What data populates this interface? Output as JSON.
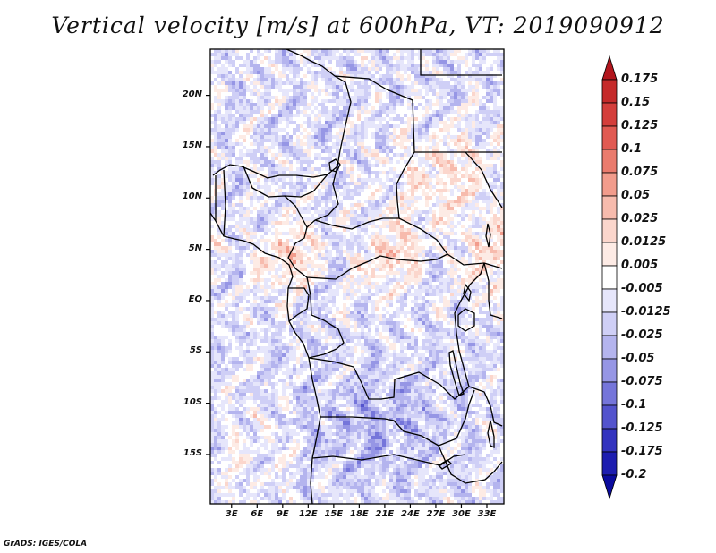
{
  "title": "Vertical velocity [m/s] at 600hPa, VT: 2019090912",
  "footer": "GrADS: IGES/COLA",
  "chart_data": {
    "type": "heatmap",
    "title": "Vertical velocity [m/s] at 600hPa, VT: 2019090912",
    "variable": "Vertical velocity",
    "units": "m/s",
    "level": "600hPa",
    "valid_time": "2019090912",
    "lat_ticks": [
      "20N",
      "15N",
      "10N",
      "5N",
      "EQ",
      "5S",
      "10S",
      "15S"
    ],
    "lon_ticks": [
      "3E",
      "6E",
      "9E",
      "12E",
      "15E",
      "18E",
      "21E",
      "24E",
      "27E",
      "30E",
      "33E"
    ],
    "lon_range": [
      0.5,
      35
    ],
    "lat_range": [
      -19.8,
      24.5
    ],
    "colorbar": {
      "levels": [
        "0.175",
        "0.15",
        "0.125",
        "0.1",
        "0.075",
        "0.05",
        "0.025",
        "0.0125",
        "0.005",
        "-0.005",
        "-0.0125",
        "-0.025",
        "-0.05",
        "-0.075",
        "-0.1",
        "-0.125",
        "-0.175",
        "-0.2"
      ],
      "colors": [
        "#b2161d",
        "#c52a2a",
        "#d43e3b",
        "#e15a52",
        "#ea7b6d",
        "#f29c8c",
        "#f7bbad",
        "#fbd6cc",
        "#fdebe5",
        "#ffffff",
        "#e6e6fb",
        "#cfcff6",
        "#b4b4ee",
        "#9696e5",
        "#7575da",
        "#5353cd",
        "#3333bf",
        "#1d1db0",
        "#0b0b9e"
      ]
    }
  }
}
